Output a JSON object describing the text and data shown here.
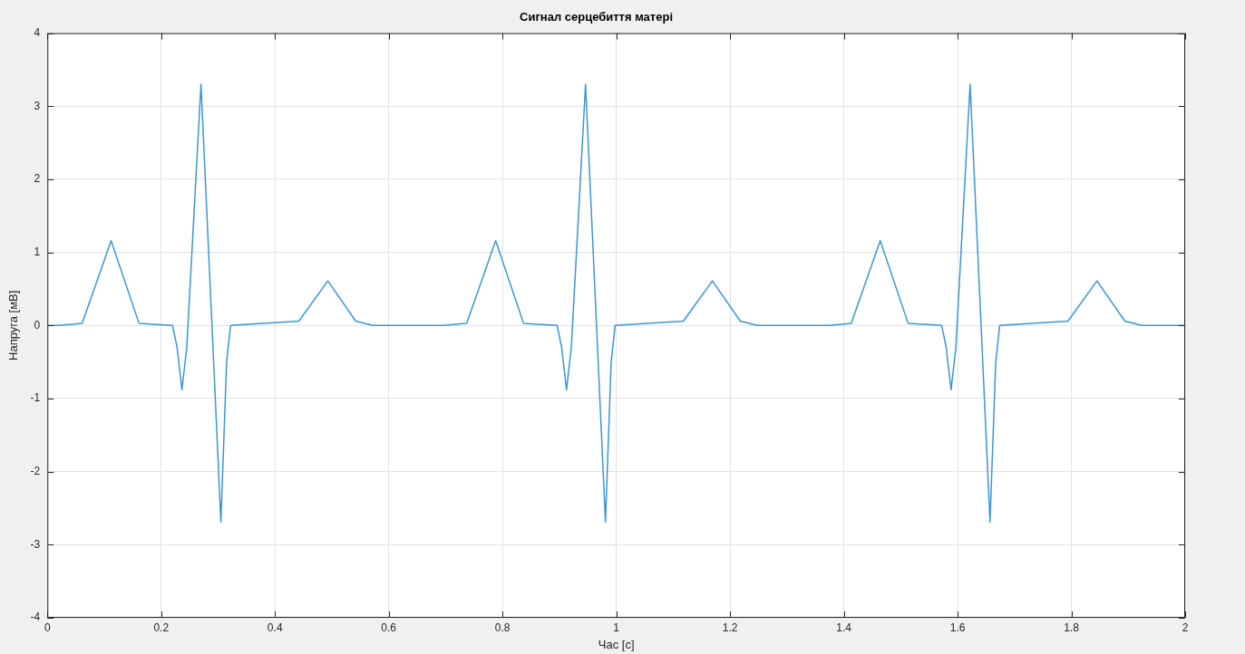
{
  "chart_data": {
    "type": "line",
    "title": "Сигнал серцебиття матері",
    "xlabel": "Час [c]",
    "ylabel": "Напруга [мВ]",
    "xlim": [
      0,
      2
    ],
    "xticks": [
      0,
      0.2,
      0.4,
      0.6,
      0.8,
      1,
      1.2,
      1.4,
      1.6,
      1.8,
      2
    ],
    "ylim": [
      -4,
      4
    ],
    "yticks": [
      -4,
      -3,
      -2,
      -1,
      0,
      1,
      2,
      3,
      4
    ],
    "grid": true,
    "legend": false,
    "marker": "none",
    "line_style": "solid",
    "series": [
      {
        "color": "#3d95d6",
        "x": [
          0,
          0.02,
          0.061,
          0.112,
          0.161,
          0.22,
          0.228,
          0.2365,
          0.245,
          0.27,
          0.305,
          0.315,
          0.322,
          0.442,
          0.493,
          0.542,
          0.572,
          0.698,
          0.737,
          0.788,
          0.837,
          0.896,
          0.904,
          0.9125,
          0.921,
          0.946,
          0.981,
          0.991,
          0.998,
          1.118,
          1.169,
          1.218,
          1.248,
          1.374,
          1.413,
          1.464,
          1.513,
          1.572,
          1.58,
          1.5885,
          1.597,
          1.622,
          1.657,
          1.667,
          1.674,
          1.794,
          1.845,
          1.894,
          1.924,
          2
        ],
        "values": [
          0,
          0,
          0.03,
          1.16,
          0.03,
          0,
          -0.3,
          -0.88,
          -0.3,
          3.3,
          -2.69,
          -0.5,
          0,
          0.06,
          0.61,
          0.06,
          0,
          0,
          0.03,
          1.16,
          0.03,
          0,
          -0.3,
          -0.88,
          -0.3,
          3.3,
          -2.69,
          -0.5,
          0,
          0.06,
          0.61,
          0.06,
          0,
          0,
          0.03,
          1.16,
          0.03,
          0,
          -0.3,
          -0.88,
          -0.3,
          3.3,
          -2.69,
          -0.5,
          0,
          0.06,
          0.61,
          0.06,
          0,
          0
        ]
      }
    ]
  }
}
